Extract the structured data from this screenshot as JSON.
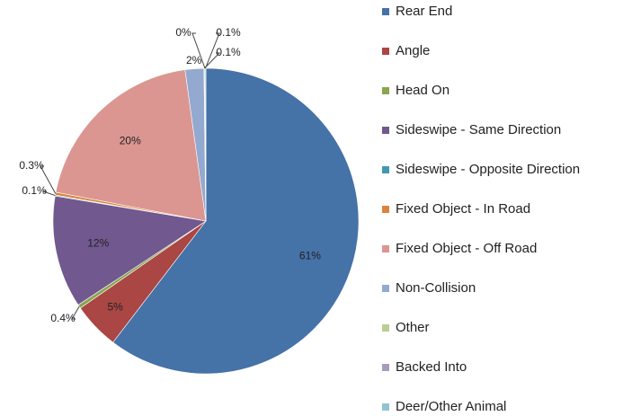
{
  "chart_data": {
    "type": "pie",
    "categories": [
      "Rear End",
      "Angle",
      "Head On",
      "Sideswipe - Same Direction",
      "Sideswipe - Opposite Direction",
      "Fixed Object - In Road",
      "Fixed Object - Off Road",
      "Non-Collision",
      "Other",
      "Backed Into",
      "Deer/Other Animal"
    ],
    "values": [
      61,
      5,
      0.4,
      12,
      0.1,
      0.3,
      20,
      2,
      0.1,
      0,
      0.1
    ],
    "value_labels": [
      "61%",
      "5%",
      "0.4%",
      "12%",
      "0.1%",
      "0.3%",
      "20%",
      "2%",
      "0.1%",
      "0%",
      "0.1%"
    ],
    "colors": [
      "#4572A7",
      "#AA4643",
      "#89A54E",
      "#71588F",
      "#4198AF",
      "#DB843D",
      "#DB9692",
      "#93A9CF",
      "#B9CD96",
      "#A99BBD",
      "#92C3D5"
    ],
    "legend": "right"
  }
}
